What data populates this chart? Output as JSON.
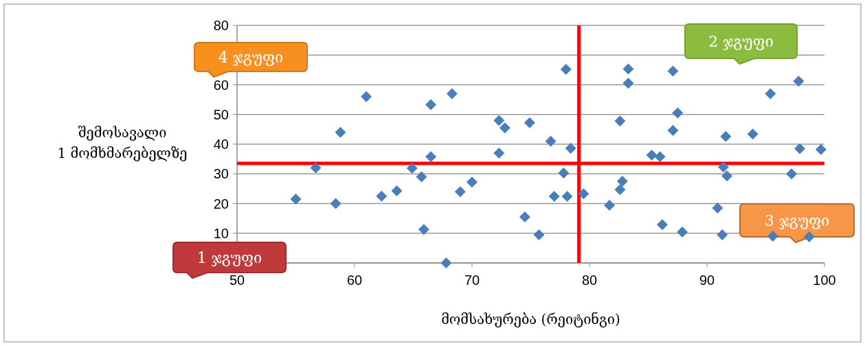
{
  "chart_data": {
    "type": "scatter",
    "xlabel": "მომსახურება (რეიტინგი)",
    "ylabel": "შემოსავალი 1 მომხმარებელზე",
    "xlim": [
      50,
      100
    ],
    "xticks": [
      50,
      60,
      70,
      80,
      90,
      100
    ],
    "ylim": [
      0,
      80
    ],
    "yticks": [
      {
        "value": 0,
        "label": null
      },
      10,
      20,
      30,
      40,
      50,
      60,
      {
        "value": 70,
        "label": null
      },
      80
    ],
    "grid": "y",
    "marker": "diamond",
    "series": [
      {
        "color": "#4a7ebb",
        "x": [
          55.0,
          56.7,
          58.4,
          58.8,
          61.0,
          62.3,
          63.6,
          64.9,
          65.7,
          65.9,
          66.5,
          66.5,
          68.3,
          67.8,
          69.0,
          70.0,
          72.3,
          72.3,
          72.8,
          74.5,
          74.9,
          75.7,
          76.7,
          77.0,
          77.8,
          78.0,
          78.1,
          78.4,
          79.5,
          81.7,
          82.6,
          82.6,
          82.8,
          83.3,
          83.3,
          85.3,
          86.0,
          86.2,
          87.1,
          87.1,
          87.5,
          87.9,
          90.9,
          91.3,
          91.4,
          91.6,
          91.7,
          93.9,
          95.4,
          95.6,
          97.8,
          97.2,
          97.9,
          99.7,
          98.7
        ],
        "values": [
          21.5,
          32,
          20,
          44,
          56,
          22.5,
          24.3,
          31.9,
          29,
          11.3,
          35.8,
          53.3,
          57,
          0,
          24,
          27.2,
          48,
          37,
          45.5,
          15.5,
          47.2,
          9.5,
          41,
          22.4,
          30.3,
          65.2,
          22.4,
          38.6,
          23.3,
          19.4,
          24.7,
          47.8,
          27.5,
          65.3,
          60.5,
          36.3,
          35.8,
          12.9,
          64.6,
          44.6,
          50.5,
          10.4,
          18.5,
          9.5,
          32.3,
          42.6,
          29.3,
          43.4,
          57,
          9,
          61.2,
          30,
          38.5,
          38.2,
          8.8
        ]
      }
    ],
    "ref_lines": [
      {
        "axis": "x",
        "value": 79.1,
        "color": "#ff0000"
      },
      {
        "axis": "y",
        "value": 33.5,
        "color": "#ff0000"
      }
    ],
    "annotations": [
      "1 ჯგუფი",
      "2 ჯგუფი",
      "3 ჯგუფი",
      "4 ჯგუფი"
    ]
  }
}
